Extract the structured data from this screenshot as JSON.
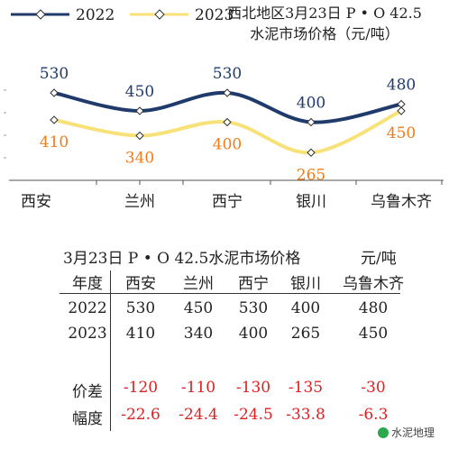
{
  "chart_data": {
    "type": "line",
    "title": "西北地区3月23日 P • O 42.5\n水泥市场价格（元/吨）",
    "title_lines": [
      "西北地区3月23日 P • O 42.5",
      "水泥市场价格（元/吨）"
    ],
    "categories": [
      "西安",
      "兰州",
      "西宁",
      "银川",
      "乌鲁木齐"
    ],
    "series": [
      {
        "name": "2022",
        "values": [
          530,
          450,
          530,
          400,
          480
        ],
        "color": "#1f3a6b",
        "label_color": "#1f3a6b"
      },
      {
        "name": "2023",
        "values": [
          410,
          340,
          400,
          265,
          450
        ],
        "color": "#f7e27a",
        "label_color": "#f07c1a"
      }
    ],
    "legend_placement": "top-left",
    "grid": false
  },
  "table": {
    "title": "3月23日 P • O 42.5水泥市场价格",
    "unit": "元/吨",
    "header": [
      "年度",
      "西安",
      "兰州",
      "西宁",
      "银川",
      "乌鲁木齐"
    ],
    "rows": [
      {
        "label": "2022",
        "values": [
          "530",
          "450",
          "530",
          "400",
          "480"
        ],
        "red": false
      },
      {
        "label": "2023",
        "values": [
          "410",
          "340",
          "400",
          "265",
          "450"
        ],
        "red": false
      },
      {
        "label": "价差",
        "values": [
          "-120",
          "-110",
          "-130",
          "-135",
          "-30"
        ],
        "red": true
      },
      {
        "label": "幅度",
        "values": [
          "-22.6",
          "-24.4",
          "-24.5",
          "-33.8",
          "-6.3"
        ],
        "red": true
      }
    ]
  },
  "watermark": "水泥地理"
}
